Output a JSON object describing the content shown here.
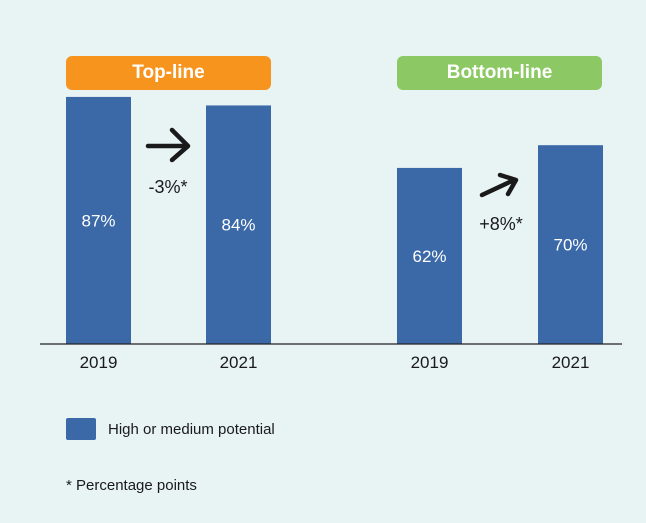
{
  "colors": {
    "bar": "#3b69a8",
    "topline": "#f7941d",
    "bottomline": "#8cc965",
    "background": "#e8f4f4",
    "axis": "#222222",
    "arrow": "#1a1a1a"
  },
  "pills": {
    "topline": "Top-line",
    "bottomline": "Bottom-line"
  },
  "chart_data": {
    "type": "bar",
    "grid": false,
    "legend_position": "bottom-left",
    "ylim": [
      0,
      100
    ],
    "groups": [
      {
        "name": "Top-line",
        "categories": [
          "2019",
          "2021"
        ],
        "values": [
          87,
          84
        ],
        "value_labels": [
          "87%",
          "84%"
        ],
        "change_label": "-3%*"
      },
      {
        "name": "Bottom-line",
        "categories": [
          "2019",
          "2021"
        ],
        "values": [
          62,
          70
        ],
        "value_labels": [
          "62%",
          "70%"
        ],
        "change_label": "+8%*"
      }
    ],
    "series": [
      {
        "name": "High or medium potential"
      }
    ]
  },
  "legend": {
    "label": "High or medium potential"
  },
  "footnote": "* Percentage points"
}
